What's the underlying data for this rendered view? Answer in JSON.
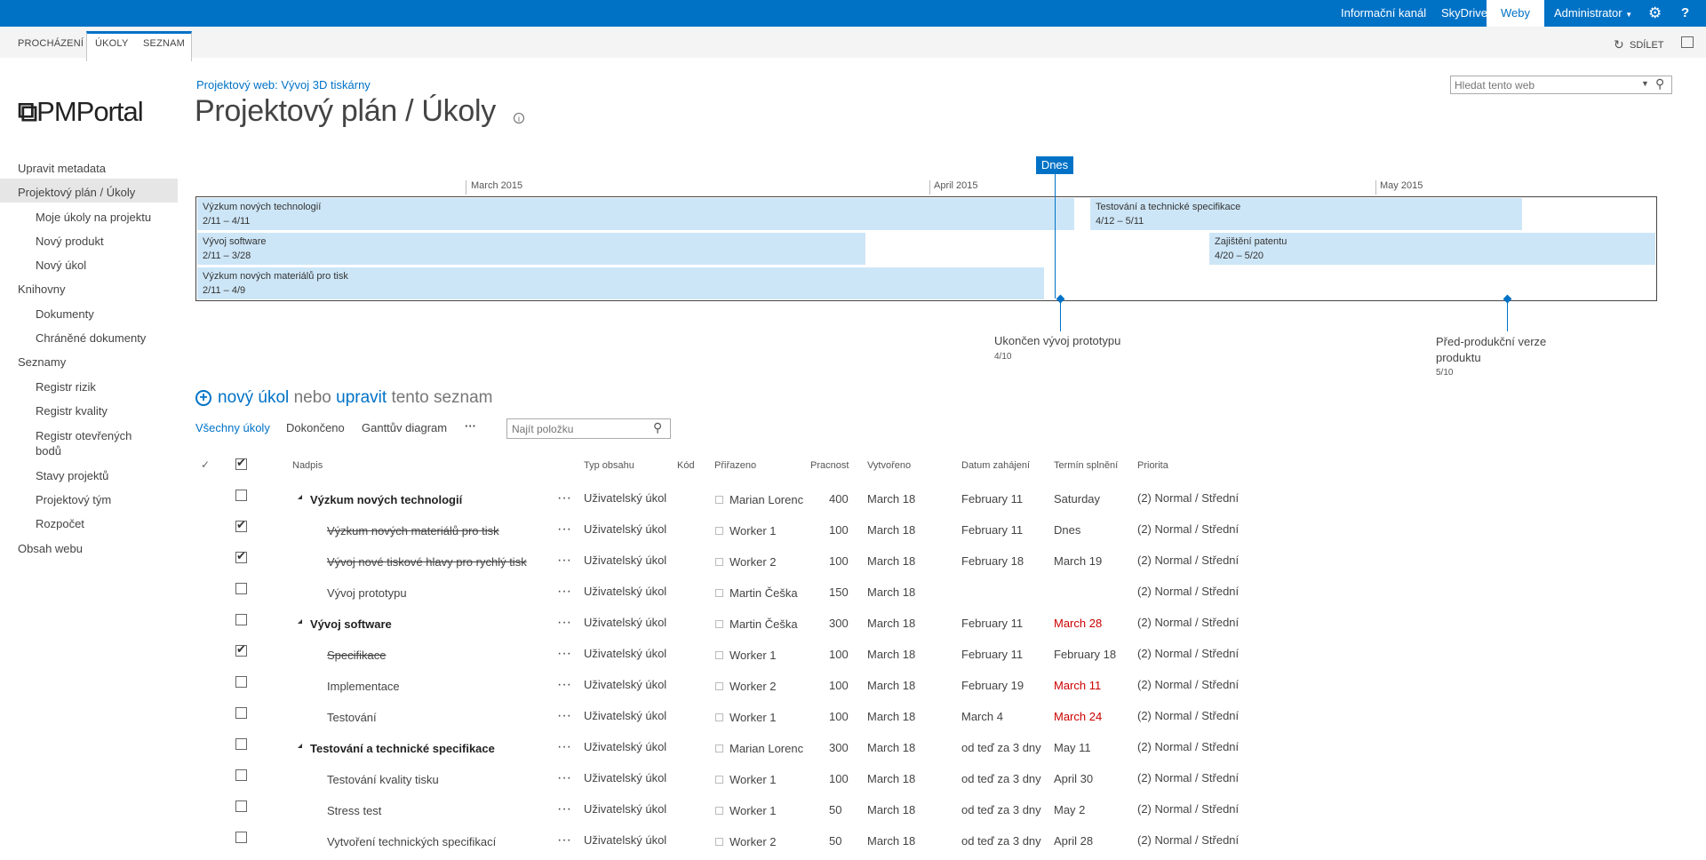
{
  "suite": {
    "links": [
      "Informační kanál",
      "SkyDrive",
      "Weby"
    ],
    "user": "Administrator"
  },
  "ribbon": {
    "tabs": [
      "PROCHÁZENÍ",
      "ÚKOLY",
      "SEZNAM"
    ],
    "share": "SDÍLET"
  },
  "site": {
    "logo": "PMPortal",
    "breadcrumb": "Projektový web: Vývoj 3D tiskárny",
    "title": "Projektový plán / Úkoly",
    "search_placeholder": "Hledat tento web"
  },
  "nav": {
    "items": [
      {
        "label": "Upravit metadata"
      },
      {
        "label": "Projektový plán / Úkoly"
      },
      {
        "label": "Moje úkoly na projektu"
      },
      {
        "label": "Nový produkt"
      },
      {
        "label": "Nový úkol"
      },
      {
        "label": "Knihovny"
      },
      {
        "label": "Dokumenty"
      },
      {
        "label": "Chráněné dokumenty"
      },
      {
        "label": "Seznamy"
      },
      {
        "label": "Registr rizik"
      },
      {
        "label": "Registr kvality"
      },
      {
        "label": "Registr otevřených bodů"
      },
      {
        "label": "Stavy projektů"
      },
      {
        "label": "Projektový tým"
      },
      {
        "label": "Rozpočet"
      },
      {
        "label": "Obsah webu"
      }
    ]
  },
  "timeline": {
    "today_label": "Dnes",
    "months": [
      "March 2015",
      "April 2015",
      "May 2015"
    ],
    "bars": [
      {
        "name": "Výzkum nových technologií",
        "dates": "2/11 – 4/11"
      },
      {
        "name": "Testování a technické specifikace",
        "dates": "4/12 – 5/11"
      },
      {
        "name": "Vývoj software",
        "dates": "2/11 – 3/28"
      },
      {
        "name": "Zajištění patentu",
        "dates": "4/20 – 5/20"
      },
      {
        "name": "Výzkum nových materiálů pro tisk",
        "dates": "2/11 – 4/9"
      }
    ],
    "milestones": [
      {
        "name": "Ukončen vývoj prototypu",
        "date": "4/10"
      },
      {
        "name": "Před-produkční verze produktu",
        "date": "5/10"
      }
    ]
  },
  "actions": {
    "new_item": "nový úkol",
    "or": "nebo",
    "edit": "upravit",
    "this_list": "tento seznam"
  },
  "views": {
    "items": [
      "Všechny úkoly",
      "Dokončeno",
      "Ganttův diagram"
    ],
    "more": "···",
    "find_placeholder": "Najít položku"
  },
  "table": {
    "headers": [
      "Nadpis",
      "Typ obsahu",
      "Kód",
      "Přiřazeno",
      "Pracnost",
      "Vytvořeno",
      "Datum zahájení",
      "Termín splnění",
      "Priorita"
    ],
    "rows": [
      {
        "title": "Výzkum nových technologií",
        "type": "Uživatelský úkol",
        "assigned": "Marian Lorenc",
        "effort": "400",
        "created": "March 18",
        "start": "February 11",
        "due": "Saturday",
        "priority": "(2) Normal / Střední"
      },
      {
        "title": "Výzkum nových materiálů pro tisk",
        "type": "Uživatelský úkol",
        "assigned": "Worker 1",
        "effort": "100",
        "created": "March 18",
        "start": "February 11",
        "due": "Dnes",
        "priority": "(2) Normal / Střední"
      },
      {
        "title": "Vývoj nové tiskové hlavy pro rychlý tisk",
        "type": "Uživatelský úkol",
        "assigned": "Worker 2",
        "effort": "100",
        "created": "March 18",
        "start": "February 18",
        "due": "March 19",
        "priority": "(2) Normal / Střední"
      },
      {
        "title": "Vývoj prototypu",
        "type": "Uživatelský úkol",
        "assigned": "Martin Češka",
        "effort": "150",
        "created": "March 18",
        "start": "",
        "due": "",
        "priority": "(2) Normal / Střední"
      },
      {
        "title": "Vývoj software",
        "type": "Uživatelský úkol",
        "assigned": "Martin Češka",
        "effort": "300",
        "created": "March 18",
        "start": "February 11",
        "due": "March 28",
        "priority": "(2) Normal / Střední"
      },
      {
        "title": "Specifikace",
        "type": "Uživatelský úkol",
        "assigned": "Worker 1",
        "effort": "100",
        "created": "March 18",
        "start": "February 11",
        "due": "February 18",
        "priority": "(2) Normal / Střední"
      },
      {
        "title": "Implementace",
        "type": "Uživatelský úkol",
        "assigned": "Worker 2",
        "effort": "100",
        "created": "March 18",
        "start": "February 19",
        "due": "March 11",
        "priority": "(2) Normal / Střední"
      },
      {
        "title": "Testování",
        "type": "Uživatelský úkol",
        "assigned": "Worker 1",
        "effort": "100",
        "created": "March 18",
        "start": "March 4",
        "due": "March 24",
        "priority": "(2) Normal / Střední"
      },
      {
        "title": "Testování a technické specifikace",
        "type": "Uživatelský úkol",
        "assigned": "Marian Lorenc",
        "effort": "300",
        "created": "March 18",
        "start": "od teď za 3 dny",
        "due": "May 11",
        "priority": "(2) Normal / Střední"
      },
      {
        "title": "Testování kvality tisku",
        "type": "Uživatelský úkol",
        "assigned": "Worker 1",
        "effort": "100",
        "created": "March 18",
        "start": "od teď za 3 dny",
        "due": "April 30",
        "priority": "(2) Normal / Střední"
      },
      {
        "title": "Stress test",
        "type": "Uživatelský úkol",
        "assigned": "Worker 1",
        "effort": "50",
        "created": "March 18",
        "start": "od teď za 3 dny",
        "due": "May 2",
        "priority": "(2) Normal / Střední"
      },
      {
        "title": "Vytvoření technických specifikací",
        "type": "Uživatelský úkol",
        "assigned": "Worker 2",
        "effort": "50",
        "created": "March 18",
        "start": "od teď za 3 dny",
        "due": "April 28",
        "priority": "(2) Normal / Střední"
      }
    ]
  },
  "colors": {
    "accent": "#0072c6",
    "overdue": "#cc0000",
    "timeline_bar": "#cde6f7"
  }
}
